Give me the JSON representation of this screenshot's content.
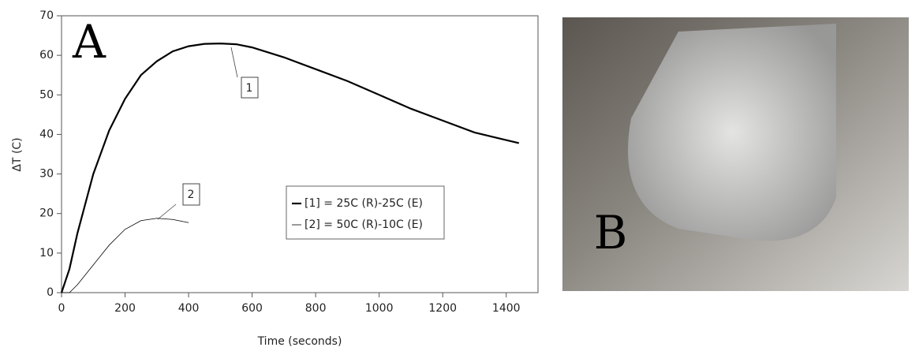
{
  "chart_data": {
    "type": "line",
    "panel_label": "A",
    "xlabel": "Time (seconds)",
    "ylabel": "ΔT (C)",
    "xlim": [
      0,
      1500
    ],
    "ylim": [
      0,
      70
    ],
    "xticks": [
      0,
      200,
      400,
      600,
      800,
      1000,
      1200,
      1400
    ],
    "yticks": [
      0,
      10,
      20,
      30,
      40,
      50,
      60,
      70
    ],
    "legend": "center-right",
    "series": [
      {
        "name": "[1] = 25C (R)-25C (E)",
        "color": "#000000",
        "width": 2.2,
        "x": [
          0,
          25,
          50,
          100,
          150,
          200,
          250,
          300,
          350,
          400,
          450,
          500,
          550,
          600,
          700,
          800,
          900,
          1000,
          1100,
          1200,
          1300,
          1440
        ],
        "values": [
          0,
          6,
          15,
          30,
          41,
          49,
          55,
          58.5,
          61,
          62.3,
          62.9,
          63,
          62.8,
          62,
          59.5,
          56.5,
          53.5,
          50,
          46.5,
          43.5,
          40.5,
          37.8
        ]
      },
      {
        "name": "[2] = 50C (R)-10C (E)",
        "color": "#000000",
        "width": 0.8,
        "x": [
          0,
          25,
          50,
          100,
          150,
          200,
          250,
          300,
          350,
          400
        ],
        "values": [
          0,
          0,
          2,
          7,
          12,
          16,
          18.2,
          18.8,
          18.5,
          17.7
        ]
      }
    ],
    "annotations": [
      {
        "text": "1"
      },
      {
        "text": "2"
      }
    ]
  },
  "photo": {
    "panel_label": "B"
  }
}
